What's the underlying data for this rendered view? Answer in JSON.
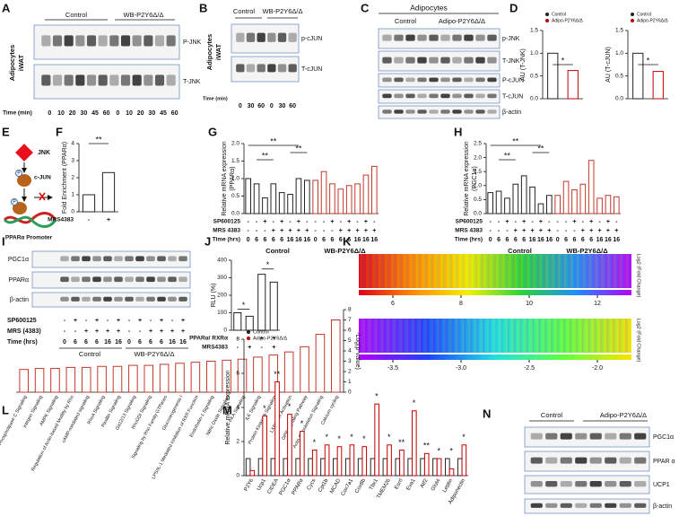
{
  "panels": {
    "A": {
      "label": "A",
      "groups": [
        "Control",
        "WB-P2Y6Δ/Δ"
      ],
      "side_label": [
        "Adipocytes",
        "iWAT"
      ],
      "rows": [
        "P-JNK",
        "T-JNK"
      ],
      "time_label": "Time (min)",
      "times": [
        "0",
        "10",
        "20",
        "30",
        "45",
        "60",
        "0",
        "10",
        "20",
        "30",
        "45",
        "60"
      ]
    },
    "B": {
      "label": "B",
      "groups": [
        "Control",
        "WB-P2Y6Δ/Δ"
      ],
      "side_label": [
        "Adipocytes",
        "iWAT"
      ],
      "rows": [
        "p-cJUN",
        "T-cJUN"
      ],
      "time_label": "Time (min)",
      "times": [
        "0",
        "30",
        "60",
        "0",
        "30",
        "60"
      ]
    },
    "C": {
      "label": "C",
      "title": "Adipocytes",
      "groups": [
        "Control",
        "Adipo-P2Y6Δ/Δ"
      ],
      "rows": [
        "p-JNK",
        "T-JNK",
        "P-cJUN",
        "T-cJUN",
        "β-actin"
      ]
    },
    "D": {
      "label": "D",
      "charts": [
        {
          "y_label": [
            "AU (T-JNK)"
          ],
          "ylim": [
            0,
            1.5
          ],
          "yticks": [
            {
              "value": 0,
              "label": "0.0"
            },
            0.5,
            {
              "value": 1,
              "label": "1.0"
            },
            1.5
          ],
          "legend": "upper left",
          "series": [
            {
              "name": "Control",
              "color": "#222222",
              "values": [
                1.0
              ]
            },
            {
              "name": "Adipo-P2Y6Δ/Δ",
              "color": "#c00000",
              "values": [
                0.62
              ]
            }
          ],
          "significance": [
            "*"
          ]
        },
        {
          "y_label": [
            "AU (T-cJUN)"
          ],
          "ylim": [
            0,
            1.5
          ],
          "yticks": [
            {
              "value": 0,
              "label": "0.0"
            },
            0.5,
            {
              "value": 1,
              "label": "1.0"
            },
            1.5
          ],
          "legend": "upper left",
          "series": [
            {
              "name": "Control",
              "color": "#222222",
              "values": [
                1.0
              ]
            },
            {
              "name": "Adipo-P2Y6Δ/Δ",
              "color": "#c00000",
              "values": [
                0.6
              ]
            }
          ],
          "significance": [
            "*"
          ]
        }
      ]
    },
    "E": {
      "label": "E",
      "nodes": [
        "JNK",
        "c-JUN",
        "PPARα Promoter"
      ],
      "phospho": "P"
    },
    "F": {
      "label": "F",
      "y_label": [
        "Fold Enrichment (PPARα)"
      ],
      "ylim": [
        0,
        4
      ],
      "yticks": [
        0,
        1,
        2,
        3,
        4
      ],
      "color": "#222222",
      "values": [
        1.0,
        2.3
      ],
      "conditions": [
        {
          "label": "MRS4383",
          "signs": [
            "-",
            "+"
          ]
        }
      ],
      "significance": [
        "**"
      ]
    },
    "G": {
      "label": "G",
      "y_label": [
        "Relative mRNA expression",
        "(PPARα)"
      ],
      "ylim": [
        0,
        2
      ],
      "yticks": [
        {
          "value": 0,
          "label": "0.0"
        },
        0.5,
        {
          "value": 1,
          "label": "1.0"
        },
        1.5,
        {
          "value": 2,
          "label": "2.0"
        }
      ],
      "legend": "below",
      "series": [
        {
          "name": "Control",
          "color": "#222222",
          "values": [
            1.0,
            0.85,
            0.45,
            0.85,
            0.6,
            0.55,
            1.0,
            0.95
          ]
        },
        {
          "name": "WB-P2Y6Δ/Δ",
          "color": "#c0392b",
          "values": [
            0.95,
            1.2,
            0.85,
            0.7,
            0.8,
            0.85,
            1.1,
            1.35
          ]
        }
      ],
      "conditions": [
        {
          "label": "SP600125",
          "signs": [
            "-",
            "-",
            "+",
            "-",
            "+",
            "-",
            "+",
            "-",
            "-",
            "-",
            "+",
            "-",
            "+",
            "-",
            "+",
            "-"
          ]
        },
        {
          "label": "MRS 4383",
          "signs": [
            "-",
            "-",
            "-",
            "+",
            "+",
            "+",
            "+",
            "+",
            "-",
            "-",
            "-",
            "+",
            "+",
            "+",
            "+",
            "+"
          ]
        },
        {
          "label": "Time (hrs)",
          "signs": [
            "0",
            "6",
            "6",
            "6",
            "6",
            "16",
            "16",
            "16",
            "0",
            "6",
            "6",
            "6",
            "6",
            "16",
            "16",
            "16"
          ]
        }
      ],
      "significance": [
        "**",
        "**",
        "**"
      ]
    },
    "H": {
      "label": "H",
      "y_label": [
        "Relative mRNA expression",
        "(PGC1α)"
      ],
      "ylim": [
        0,
        2.5
      ],
      "yticks": [
        {
          "value": 0,
          "label": "0.0"
        },
        0.5,
        {
          "value": 1,
          "label": "1.0"
        },
        1.5,
        {
          "value": 2,
          "label": "2.0"
        },
        2.5
      ],
      "legend": "below",
      "series": [
        {
          "name": "Control",
          "color": "#222222",
          "values": [
            0.75,
            0.8,
            0.55,
            1.05,
            1.35,
            0.95,
            0.35,
            0.65
          ]
        },
        {
          "name": "WB-P2Y6Δ/Δ",
          "color": "#c0392b",
          "values": [
            0.65,
            1.15,
            0.85,
            1.05,
            1.9,
            0.55,
            0.65,
            0.6
          ]
        }
      ],
      "conditions": [
        {
          "label": "SP600125",
          "signs": [
            "-",
            "-",
            "+",
            "-",
            "+",
            "-",
            "+",
            "-",
            "-",
            "-",
            "+",
            "-",
            "+",
            "-",
            "+",
            "-"
          ]
        },
        {
          "label": "MRS 4383",
          "signs": [
            "-",
            "-",
            "-",
            "+",
            "+",
            "+",
            "+",
            "+",
            "-",
            "-",
            "-",
            "+",
            "+",
            "+",
            "+",
            "+"
          ]
        },
        {
          "label": "Time (hrs)",
          "signs": [
            "0",
            "6",
            "6",
            "6",
            "6",
            "16",
            "16",
            "16",
            "0",
            "6",
            "6",
            "6",
            "6",
            "16",
            "16",
            "16"
          ]
        }
      ],
      "significance": [
        "**",
        "**",
        "**"
      ]
    },
    "I": {
      "label": "I",
      "rows": [
        "PGC1α",
        "PPARα",
        "β-actin"
      ],
      "groups": [
        "Control",
        "WB-P2Y6Δ/Δ"
      ],
      "conditions": [
        {
          "label": "SP600125",
          "signs": [
            "-",
            "+",
            "-",
            "+",
            "-",
            "+",
            "-",
            "+",
            "-",
            "+",
            "-",
            "+"
          ]
        },
        {
          "label": "MRS (4383)",
          "signs": [
            "-",
            "-",
            "+",
            "+",
            "+",
            "+",
            "-",
            "-",
            "+",
            "+",
            "+",
            "+"
          ]
        },
        {
          "label": "Time (hrs)",
          "signs": [
            "0",
            "6",
            "6",
            "6",
            "16",
            "16",
            "0",
            "6",
            "6",
            "6",
            "16",
            "16"
          ]
        }
      ]
    },
    "J": {
      "label": "J",
      "y_label": [
        "RLU (%)"
      ],
      "ylim": [
        0,
        400
      ],
      "yticks": [
        0,
        100,
        200,
        300,
        400
      ],
      "color": "#222222",
      "values": [
        100,
        80,
        320,
        275
      ],
      "conditions": [
        {
          "label": "PPARα/ RXRα",
          "signs": [
            "-",
            "-",
            "+",
            "+"
          ]
        },
        {
          "label": "MRS4383",
          "signs": [
            "-",
            "+",
            "-",
            "+"
          ]
        }
      ],
      "significance": [
        "*",
        "*"
      ]
    },
    "K": {
      "label": "K",
      "scales": [
        {
          "label": "Log2 (Fold Change)",
          "ticks": [
            6,
            8,
            10,
            12
          ]
        },
        {
          "label": "Log2 (Fold Change)",
          "ticks": [
            -3.5,
            {
              "value": -3,
              "label": "-3.0"
            },
            -2.5,
            {
              "value": -2,
              "label": "-2.0"
            }
          ]
        }
      ]
    },
    "L": {
      "label": "L",
      "y_label": [
        "-Log(p-value)"
      ],
      "axis": "right",
      "ylim": [
        0,
        8
      ],
      "yticks": [
        0,
        1,
        2,
        3,
        4,
        5,
        6,
        7,
        8
      ],
      "color": "#c0392b",
      "categories": [
        "Phospholipase C Signaling",
        "Integrin Signaling",
        "AMPK Signaling",
        "Regulation of Actin-based Motility by Rho",
        "cAMP-mediated signaling",
        "RhoA Signaling",
        "Paxillin Signaling",
        "Gα12/13 Signaling",
        "RhoGDI Signaling",
        "Signaling by Rho Family GTPases",
        "Gluconeogenesis I",
        "LPS/IL-1 Mediated Inhibition of RXR Function",
        "Endothelin-1 Signaling",
        "Nitric Oxide Signaling",
        "PKA Signaling",
        "ILK Signaling",
        "Protein Kinase A Signaling",
        "LXR/RXR Activation",
        "GPR Signaling Pathway",
        "Actin Cytoskeleton Signaling",
        "Calcium cycling"
      ],
      "values": [
        2.2,
        2.3,
        2.3,
        2.4,
        2.4,
        2.5,
        2.5,
        2.6,
        2.6,
        2.7,
        2.8,
        2.9,
        3.0,
        3.1,
        3.2,
        3.4,
        3.6,
        3.9,
        4.4,
        5.6,
        7.0
      ]
    },
    "M": {
      "label": "M",
      "y_label": [
        "Relative mRNA expression"
      ],
      "mode": "grouped",
      "legend": "upper left",
      "ylim": [
        0,
        8
      ],
      "yticks": [
        0,
        2,
        4,
        6,
        8
      ],
      "categories": [
        "P2Y6",
        "Ucp1",
        "CIDEA",
        "PGC1α",
        "PPARα",
        "Cycs",
        "Cpt1b",
        "MCAD",
        "Cox7a1",
        "Cox8b",
        "Tbx1",
        "TMEM26",
        "Esrrl",
        "Eva1",
        "Atf2",
        "Glut4",
        "Leptin",
        "Adiponectin"
      ],
      "series": [
        {
          "name": "Control",
          "color": "#222222",
          "values": [
            1,
            1,
            1,
            1,
            1,
            1,
            1,
            1,
            1,
            1,
            1,
            1,
            1,
            1,
            1,
            1,
            1,
            1
          ]
        },
        {
          "name": "Adipo-P2Y6Δ/Δ",
          "color": "#c00000",
          "values": [
            0.3,
            3.5,
            5.5,
            3.6,
            2.6,
            1.5,
            1.8,
            1.7,
            1.8,
            1.7,
            4.2,
            1.8,
            1.5,
            3.8,
            1.3,
            1.0,
            0.4,
            1.8
          ]
        }
      ],
      "significance": [
        "*",
        "**",
        "*",
        "*",
        "*",
        "*",
        "*",
        "*",
        "*",
        "*",
        "*",
        "**",
        "*",
        "**",
        "*",
        "*",
        "*"
      ]
    },
    "N": {
      "label": "N",
      "groups": [
        "Control",
        "Adipo-P2Y6Δ/Δ"
      ],
      "rows": [
        "PGC1α",
        "PPAR α",
        "UCP1",
        "β-actin"
      ]
    }
  }
}
